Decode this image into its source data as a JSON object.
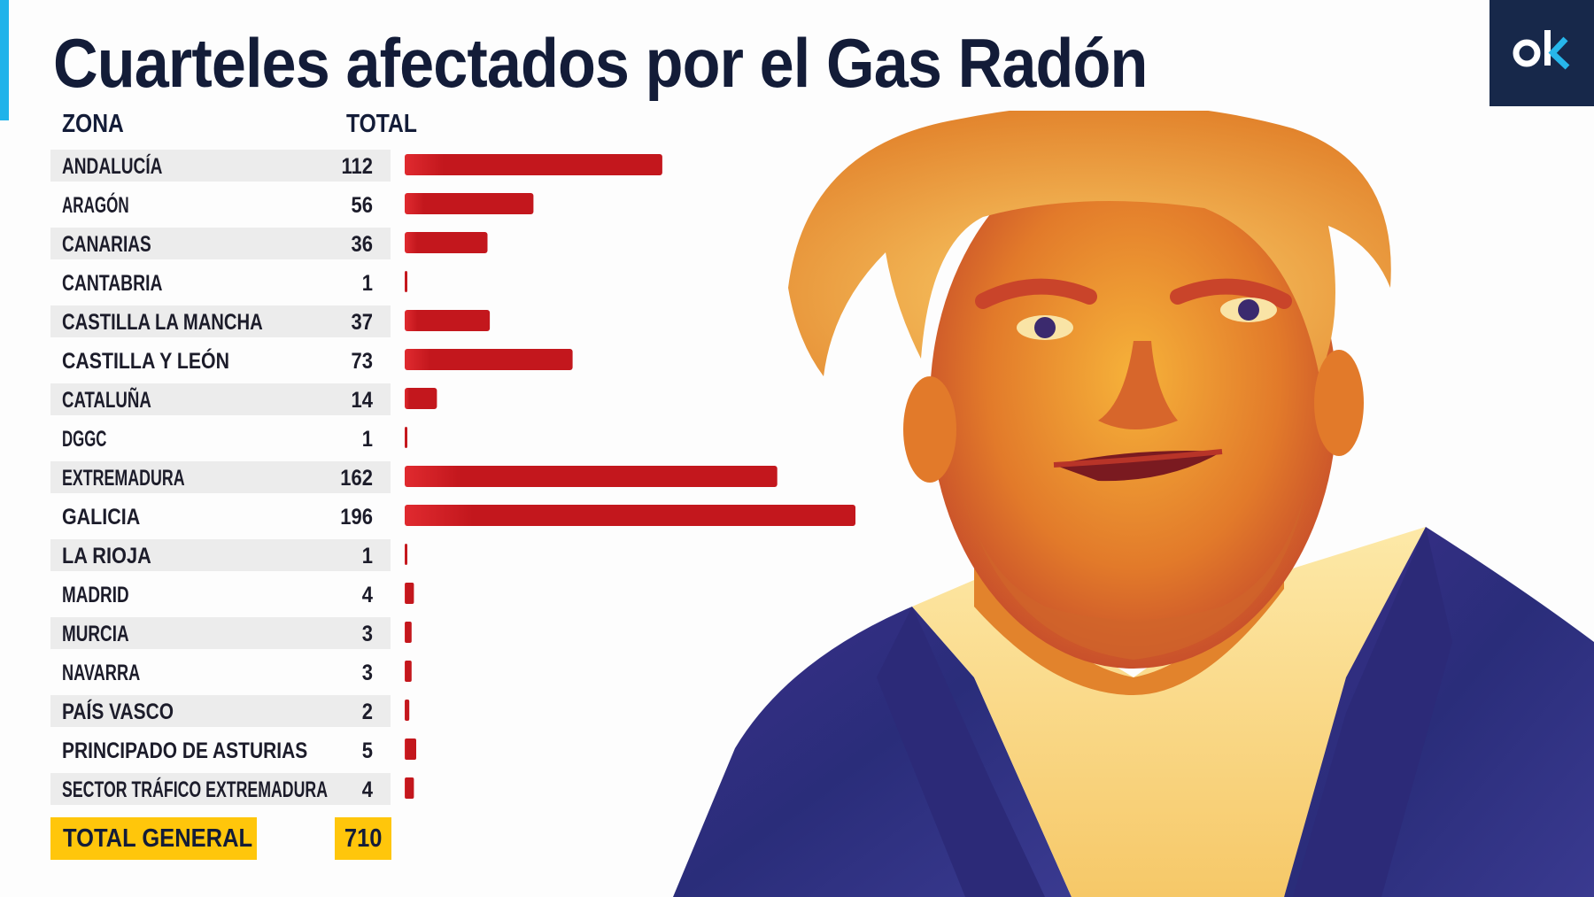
{
  "title": "Cuarteles afectados por el Gas Radón",
  "columns": {
    "zona": "ZONA",
    "total": "TOTAL"
  },
  "total_general": {
    "label": "TOTAL GENERAL",
    "value": "710"
  },
  "logo": {
    "text": "ok"
  },
  "colors": {
    "title": "#131c38",
    "bar": "#c3171d",
    "bar_light": "#e02a2f",
    "row_shade": "#ececec",
    "highlight": "#ffc60b",
    "accent": "#1fb3ea",
    "logo_bg": "#17284a"
  },
  "chart_data": {
    "type": "bar",
    "orientation": "horizontal",
    "categories": [
      "ANDALUCÍA",
      "ARAGÓN",
      "CANARIAS",
      "CANTABRIA",
      "CASTILLA LA MANCHA",
      "CASTILLA Y LEÓN",
      "CATALUÑA",
      "DGGC",
      "EXTREMADURA",
      "GALICIA",
      "LA RIOJA",
      "MADRID",
      "MURCIA",
      "NAVARRA",
      "PAÍS VASCO",
      "PRINCIPADO DE ASTURIAS",
      "SECTOR TRÁFICO EXTREMADURA"
    ],
    "values": [
      112,
      56,
      36,
      1,
      37,
      73,
      14,
      1,
      162,
      196,
      1,
      4,
      3,
      3,
      2,
      5,
      4
    ],
    "title": "Cuarteles afectados por el Gas Radón",
    "xlabel": "TOTAL",
    "ylabel": "ZONA",
    "xlim": [
      0,
      196
    ],
    "grid": false,
    "legend": "none"
  }
}
